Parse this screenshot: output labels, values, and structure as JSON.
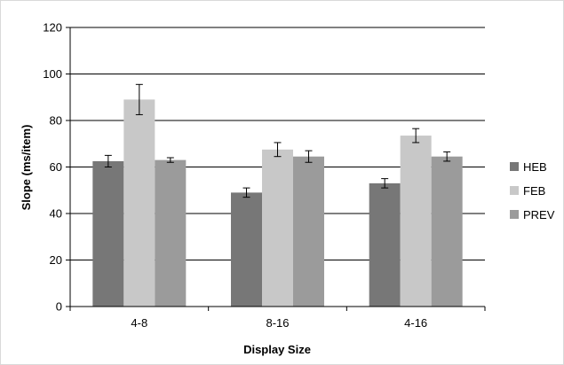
{
  "chart_data": {
    "type": "bar",
    "title": "",
    "xlabel": "Display Size",
    "ylabel": "Slope (ms/item)",
    "categories": [
      "4-8",
      "8-16",
      "4-16"
    ],
    "ylim": [
      0,
      120
    ],
    "yticks": [
      0,
      20,
      40,
      60,
      80,
      100,
      120
    ],
    "grid": true,
    "legend_position": "right",
    "series": [
      {
        "name": "HEB",
        "color": "#777777",
        "values": [
          62.5,
          49,
          53
        ],
        "errors": [
          2.5,
          2,
          2
        ]
      },
      {
        "name": "FEB",
        "color": "#c8c8c8",
        "values": [
          89,
          67.5,
          73.5
        ],
        "errors": [
          6.5,
          3,
          3
        ]
      },
      {
        "name": "PREV",
        "color": "#9b9b9b",
        "values": [
          63,
          64.5,
          64.5
        ],
        "errors": [
          1,
          2.5,
          2
        ]
      }
    ]
  }
}
